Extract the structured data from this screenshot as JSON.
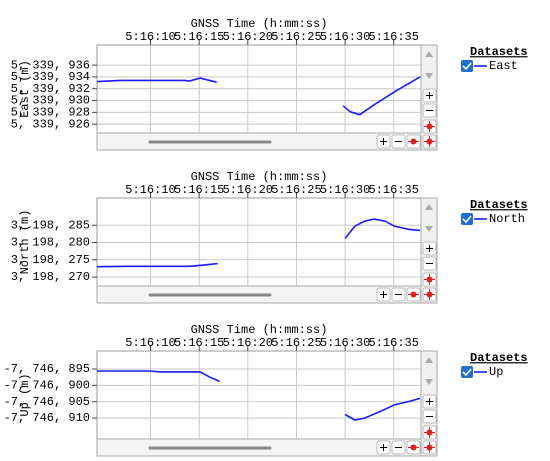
{
  "chart_data": [
    {
      "type": "line",
      "title": "GNSS Time (h:mm:ss)",
      "ylabel": "East (m)",
      "legend_title": "Datasets",
      "grid": true,
      "xlim": [
        18964.5,
        18997.8
      ],
      "xticks": [
        {
          "value": 18970,
          "label": "5:16:10"
        },
        {
          "value": 18975,
          "label": "5:16:15"
        },
        {
          "value": 18980,
          "label": "5:16:20"
        },
        {
          "value": 18985,
          "label": "5:16:25"
        },
        {
          "value": 18990,
          "label": "5:16:30"
        },
        {
          "value": 18995,
          "label": "5:16:35"
        }
      ],
      "ylim": [
        5339924.5,
        5339939.4
      ],
      "yticks": [
        {
          "value": 5339926,
          "label": "5, 339, 926"
        },
        {
          "value": 5339928,
          "label": "5, 339, 928"
        },
        {
          "value": 5339930,
          "label": "5, 339, 930"
        },
        {
          "value": 5339932,
          "label": "5, 339, 932"
        },
        {
          "value": 5339934,
          "label": "5, 339, 934"
        },
        {
          "value": 5339936,
          "label": "5, 339, 936"
        }
      ],
      "x": [
        18964.5,
        18966.9,
        18969.9,
        18973.5,
        18974.0,
        18975.1,
        18976.8,
        null,
        18989.8,
        18990.5,
        18991.5,
        18993.0,
        18995.1,
        18997.7
      ],
      "series": [
        {
          "name": "East",
          "color": "#1a1aff",
          "values": [
            5339933.2,
            5339933.4,
            5339933.4,
            5339933.4,
            5339933.3,
            5339933.8,
            5339933.1,
            null,
            5339929.1,
            5339928.1,
            5339927.6,
            5339929.3,
            5339931.5,
            5339934.0
          ]
        }
      ]
    },
    {
      "type": "line",
      "title": "GNSS Time (h:mm:ss)",
      "ylabel": "North (m)",
      "legend_title": "Datasets",
      "grid": true,
      "xlim": [
        18964.5,
        18997.8
      ],
      "xticks": [
        {
          "value": 18970,
          "label": "5:16:10"
        },
        {
          "value": 18975,
          "label": "5:16:15"
        },
        {
          "value": 18980,
          "label": "5:16:20"
        },
        {
          "value": 18985,
          "label": "5:16:25"
        },
        {
          "value": 18990,
          "label": "5:16:30"
        },
        {
          "value": 18995,
          "label": "5:16:35"
        }
      ],
      "ylim": [
        3198267.4,
        3198292.9
      ],
      "yticks": [
        {
          "value": 3198270,
          "label": "3, 198, 270"
        },
        {
          "value": 3198275,
          "label": "3, 198, 275"
        },
        {
          "value": 3198280,
          "label": "3, 198, 280"
        },
        {
          "value": 3198285,
          "label": "3, 198, 285"
        }
      ],
      "x": [
        18964.5,
        18967.9,
        18974.0,
        18975.6,
        18976.9,
        null,
        18990.0,
        18991.0,
        18992.0,
        18993.0,
        18994.1,
        18995.1,
        18996.6,
        18997.7
      ],
      "series": [
        {
          "name": "North",
          "color": "#1a1aff",
          "values": [
            3198273.0,
            3198273.1,
            3198273.1,
            3198273.5,
            3198273.9,
            null,
            3198281.2,
            3198284.7,
            3198286.2,
            3198286.8,
            3198286.2,
            3198284.7,
            3198283.8,
            3198283.5
          ]
        }
      ]
    },
    {
      "type": "line",
      "title": "GNSS Time (h:mm:ss)",
      "ylabel": "Up (m)",
      "legend_title": "Datasets",
      "grid": true,
      "xlim": [
        18964.5,
        18997.8
      ],
      "xticks": [
        {
          "value": 18970,
          "label": "5:16:10"
        },
        {
          "value": 18975,
          "label": "5:16:15"
        },
        {
          "value": 18980,
          "label": "5:16:20"
        },
        {
          "value": 18985,
          "label": "5:16:25"
        },
        {
          "value": 18990,
          "label": "5:16:30"
        },
        {
          "value": 18995,
          "label": "5:16:35"
        }
      ],
      "ylim": [
        -7746916.4,
        -7746889.5
      ],
      "yticks": [
        {
          "value": -7746910,
          "label": "-7, 746, 910"
        },
        {
          "value": -7746905,
          "label": "-7, 746, 905"
        },
        {
          "value": -7746900,
          "label": "-7, 746, 900"
        },
        {
          "value": -7746895,
          "label": "-7, 746, 895"
        }
      ],
      "x": [
        18964.5,
        18969.9,
        18971.0,
        18975.1,
        18976.1,
        18977.1,
        null,
        18990.0,
        18991.0,
        18992.0,
        18993.6,
        18995.1,
        18996.6,
        18997.7
      ],
      "series": [
        {
          "name": "Up",
          "color": "#1a1aff",
          "values": [
            -7746895.6,
            -7746895.6,
            -7746895.9,
            -7746895.9,
            -7746897.5,
            -7746898.8,
            null,
            -7746908.9,
            -7746910.6,
            -7746910.0,
            -7746908.0,
            -7746905.9,
            -7746904.9,
            -7746904.0
          ]
        }
      ]
    }
  ]
}
